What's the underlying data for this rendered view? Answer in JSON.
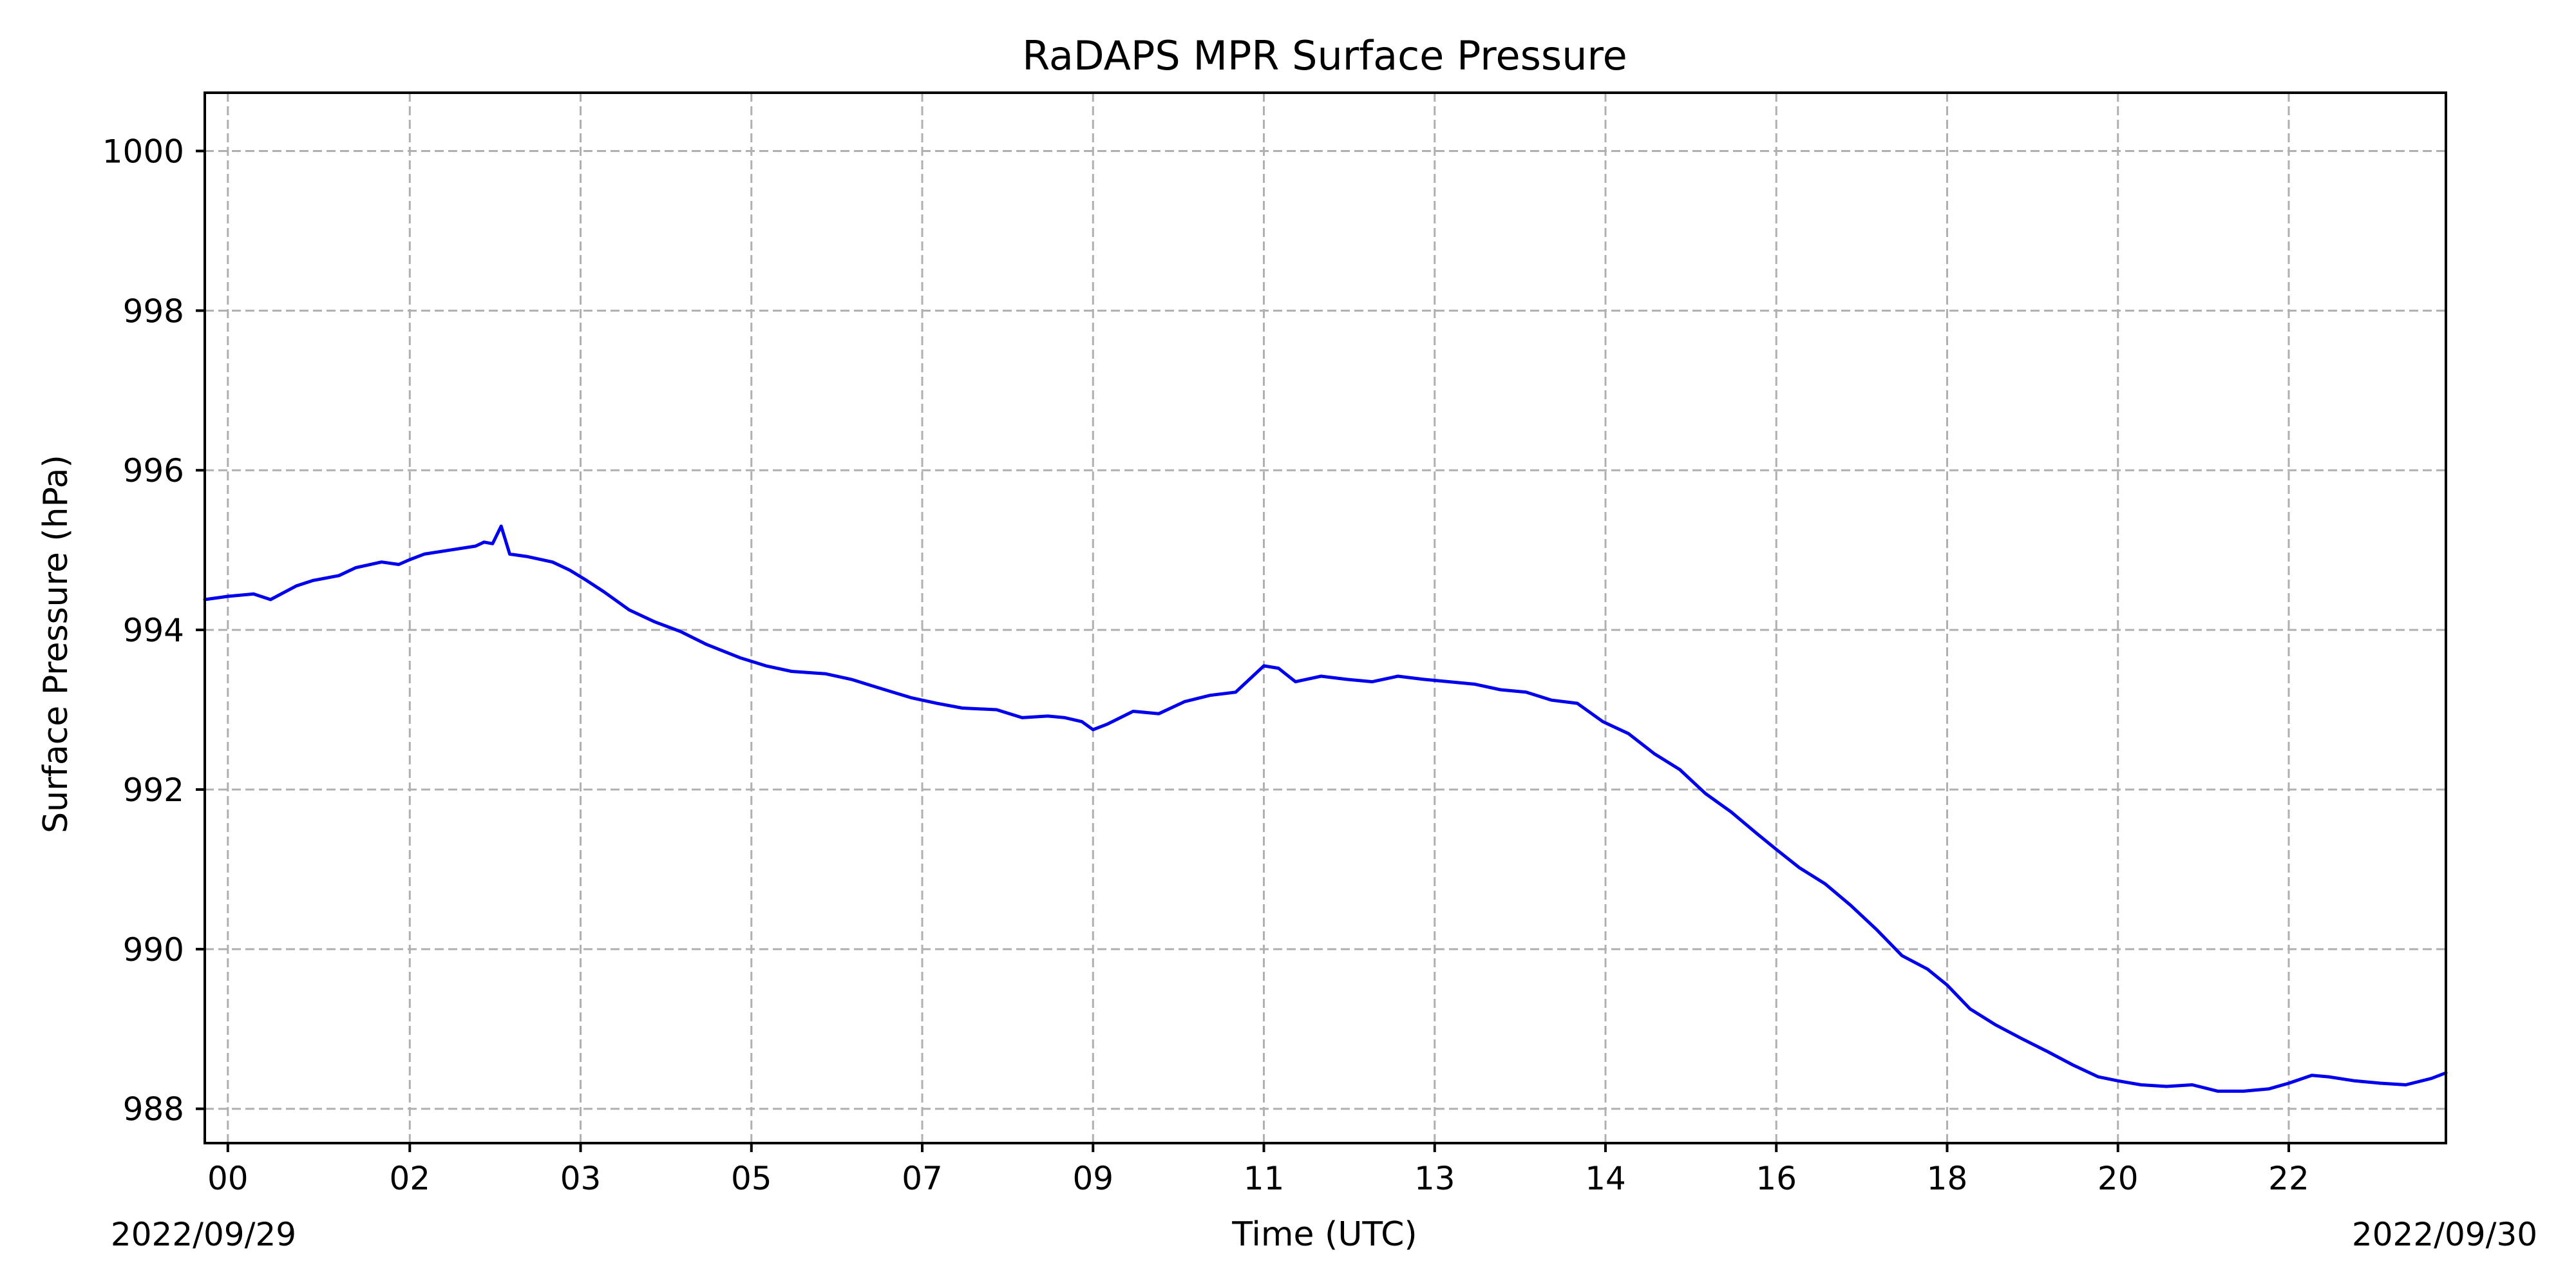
{
  "chart_data": {
    "type": "line",
    "title": "RaDAPS MPR Surface Pressure",
    "xlabel": "Time (UTC)",
    "ylabel": "Surface Pressure (hPa)",
    "x_unit": "hours since 2022/09/29 00:00 UTC",
    "xlim": [
      -0.27,
      25.97
    ],
    "ylim": [
      987.57,
      1000.73
    ],
    "grid": true,
    "legend": "none",
    "date_labels": {
      "start": "2022/09/29",
      "end": "2022/09/30"
    },
    "x_ticks": [
      {
        "x": 0.0,
        "label": "00"
      },
      {
        "x": 2.13,
        "label": "02"
      },
      {
        "x": 4.13,
        "label": "03"
      },
      {
        "x": 6.13,
        "label": "05"
      },
      {
        "x": 8.13,
        "label": "07"
      },
      {
        "x": 10.13,
        "label": "09"
      },
      {
        "x": 12.13,
        "label": "11"
      },
      {
        "x": 14.13,
        "label": "13"
      },
      {
        "x": 16.13,
        "label": "14"
      },
      {
        "x": 18.13,
        "label": "16"
      },
      {
        "x": 20.13,
        "label": "18"
      },
      {
        "x": 22.13,
        "label": "20"
      },
      {
        "x": 24.13,
        "label": "22"
      }
    ],
    "y_ticks": [
      988,
      990,
      992,
      994,
      996,
      998,
      1000
    ],
    "series": [
      {
        "color": "#0000ee",
        "x": [
          -0.27,
          0.0,
          0.3,
          0.5,
          0.8,
          1.0,
          1.3,
          1.5,
          1.8,
          2.0,
          2.13,
          2.3,
          2.6,
          2.9,
          3.0,
          3.1,
          3.2,
          3.3,
          3.5,
          3.8,
          4.0,
          4.2,
          4.4,
          4.7,
          5.0,
          5.3,
          5.6,
          6.0,
          6.3,
          6.6,
          7.0,
          7.3,
          7.6,
          8.0,
          8.3,
          8.6,
          9.0,
          9.3,
          9.6,
          9.8,
          10.0,
          10.13,
          10.3,
          10.6,
          10.9,
          11.2,
          11.5,
          11.8,
          12.0,
          12.13,
          12.3,
          12.5,
          12.8,
          13.1,
          13.4,
          13.7,
          14.0,
          14.3,
          14.6,
          14.9,
          15.2,
          15.5,
          15.8,
          16.1,
          16.4,
          16.7,
          17.0,
          17.3,
          17.6,
          17.9,
          18.13,
          18.4,
          18.7,
          19.0,
          19.3,
          19.6,
          19.9,
          20.13,
          20.4,
          20.7,
          21.0,
          21.3,
          21.6,
          21.9,
          22.13,
          22.4,
          22.7,
          23.0,
          23.3,
          23.6,
          23.9,
          24.13,
          24.4,
          24.6,
          24.9,
          25.2,
          25.5,
          25.8,
          25.97
        ],
        "y": [
          994.38,
          994.42,
          994.45,
          994.38,
          994.55,
          994.62,
          994.68,
          994.78,
          994.85,
          994.82,
          994.88,
          994.95,
          995.0,
          995.05,
          995.1,
          995.08,
          995.3,
          994.95,
          994.92,
          994.85,
          994.75,
          994.62,
          994.48,
          994.25,
          994.1,
          993.98,
          993.82,
          993.65,
          993.55,
          993.48,
          993.45,
          993.38,
          993.28,
          993.15,
          993.08,
          993.02,
          993.0,
          992.9,
          992.92,
          992.9,
          992.85,
          992.75,
          992.82,
          992.98,
          992.95,
          993.1,
          993.18,
          993.22,
          993.42,
          993.55,
          993.52,
          993.35,
          993.42,
          993.38,
          993.35,
          993.42,
          993.38,
          993.35,
          993.32,
          993.25,
          993.22,
          993.12,
          993.08,
          992.85,
          992.7,
          992.45,
          992.25,
          991.95,
          991.72,
          991.45,
          991.25,
          991.02,
          990.82,
          990.55,
          990.25,
          989.92,
          989.75,
          989.55,
          989.25,
          989.05,
          988.88,
          988.72,
          988.55,
          988.4,
          988.35,
          988.3,
          988.28,
          988.3,
          988.22,
          988.22,
          988.25,
          988.32,
          988.42,
          988.4,
          988.35,
          988.32,
          988.3,
          988.38,
          988.45
        ]
      }
    ]
  }
}
